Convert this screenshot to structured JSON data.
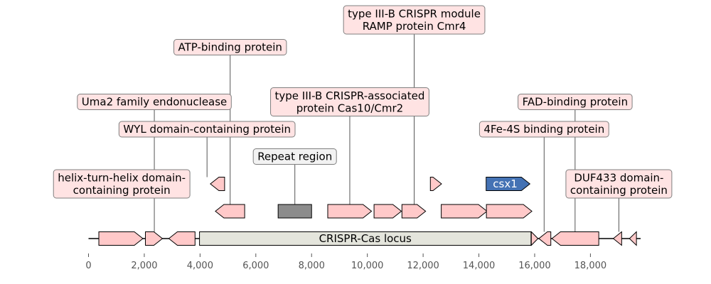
{
  "colors": {
    "gene": "#ffc9c9",
    "gene_stroke": "#000000",
    "locus": "#e4e5dc",
    "repeat": "#8c8c8c",
    "csx1": "#4472b4",
    "label_box": "#ffe3e3",
    "label_box_grey": "#f2f2f2",
    "label_border": "#7f7f7f",
    "leader": "#555555"
  },
  "axis": {
    "min": 0,
    "max": 19800,
    "ticks": [
      {
        "value": 0,
        "label": "0"
      },
      {
        "value": 2000,
        "label": "2,000"
      },
      {
        "value": 4000,
        "label": "4,000"
      },
      {
        "value": 6000,
        "label": "6,000"
      },
      {
        "value": 8000,
        "label": "8,000"
      },
      {
        "value": 10000,
        "label": "10,000"
      },
      {
        "value": 12000,
        "label": "12,000"
      },
      {
        "value": 14000,
        "label": "14,000"
      },
      {
        "value": 16000,
        "label": "16,000"
      },
      {
        "value": 18000,
        "label": "18,000"
      }
    ]
  },
  "locus": {
    "start": 3980,
    "end": 15870,
    "label": "CRISPR-Cas locus"
  },
  "features": [
    {
      "id": "helix",
      "start": 370,
      "end": 1950,
      "strand": 1,
      "level": 0
    },
    {
      "id": "uma2",
      "start": 2040,
      "end": 2650,
      "strand": 1,
      "level": 0
    },
    {
      "id": "wyl",
      "start": 2880,
      "end": 3820,
      "strand": -1,
      "level": 0
    },
    {
      "id": "atp",
      "start": 4370,
      "end": 4880,
      "strand": -1,
      "level": 2
    },
    {
      "id": "f5",
      "start": 4550,
      "end": 5600,
      "strand": -1,
      "level": 1
    },
    {
      "id": "repeat",
      "start": 6800,
      "end": 8000,
      "strand": 0,
      "level": 1,
      "color_key": "repeat"
    },
    {
      "id": "f7",
      "start": 8580,
      "end": 10150,
      "strand": 1,
      "level": 1
    },
    {
      "id": "f8",
      "start": 10240,
      "end": 11220,
      "strand": 1,
      "level": 1
    },
    {
      "id": "f9",
      "start": 11240,
      "end": 12090,
      "strand": 1,
      "level": 1
    },
    {
      "id": "f10",
      "start": 12260,
      "end": 12660,
      "strand": 1,
      "level": 2
    },
    {
      "id": "f11",
      "start": 12650,
      "end": 14290,
      "strand": 1,
      "level": 1
    },
    {
      "id": "f12",
      "start": 14270,
      "end": 15900,
      "strand": 1,
      "level": 1
    },
    {
      "id": "csx1",
      "start": 14260,
      "end": 15830,
      "strand": 1,
      "level": 2,
      "color_key": "csx1",
      "label": "csx1"
    },
    {
      "id": "f14",
      "start": 15880,
      "end": 16120,
      "strand": 1,
      "level": 0
    },
    {
      "id": "f15",
      "start": 16150,
      "end": 16580,
      "strand": -1,
      "level": 0
    },
    {
      "id": "f16",
      "start": 16620,
      "end": 18300,
      "strand": -1,
      "level": 0
    },
    {
      "id": "f17",
      "start": 18820,
      "end": 19120,
      "strand": -1,
      "level": 0
    },
    {
      "id": "f18",
      "start": 19400,
      "end": 19650,
      "strand": -1,
      "level": 0
    }
  ],
  "callouts": [
    {
      "id": "helix",
      "lines": [
        "helix-turn-helix domain-",
        "containing protein"
      ],
      "at": 1190,
      "level": 2,
      "box_y": 2,
      "grey": false
    },
    {
      "id": "uma2",
      "lines": [
        "Uma2 family endonuclease"
      ],
      "at": 2360,
      "level": 0,
      "box_y": 5,
      "grey": false
    },
    {
      "id": "wyl",
      "lines": [
        "WYL domain-containing protein"
      ],
      "at": 4250,
      "level": 2,
      "box_y": 4,
      "grey": false
    },
    {
      "id": "atp",
      "lines": [
        "ATP-binding protein"
      ],
      "at": 5080,
      "level": 1,
      "box_y": 7,
      "grey": false
    },
    {
      "id": "repeat",
      "lines": [
        "Repeat region"
      ],
      "at": 7400,
      "level": 1,
      "box_y": 3,
      "grey": true
    },
    {
      "id": "cas10",
      "lines": [
        "type III-B CRISPR-associated",
        "protein Cas10/Cmr2"
      ],
      "at": 9370,
      "level": 1,
      "box_y": 5,
      "grey": false
    },
    {
      "id": "cmr4",
      "lines": [
        "type III-B CRISPR module",
        "RAMP protein Cmr4"
      ],
      "at": 11680,
      "level": 1,
      "box_y": 8,
      "grey": false
    },
    {
      "id": "fs",
      "lines": [
        "4Fe-4S binding protein"
      ],
      "at": 16340,
      "level": 0,
      "box_y": 4,
      "grey": false
    },
    {
      "id": "fad",
      "lines": [
        "FAD-binding protein"
      ],
      "at": 17450,
      "level": 0,
      "box_y": 5,
      "grey": false
    },
    {
      "id": "duf",
      "lines": [
        "DUF433 domain-",
        "containing protein"
      ],
      "at": 19020,
      "level": 0,
      "box_y": 2,
      "grey": false
    }
  ]
}
